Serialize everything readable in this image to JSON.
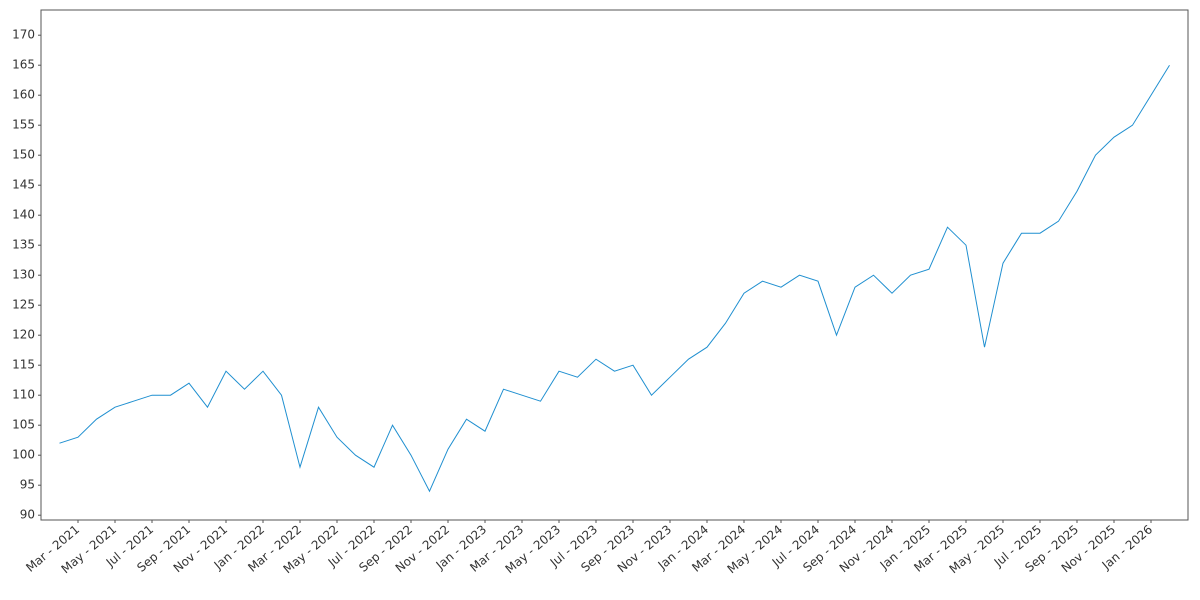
{
  "chart_data": {
    "type": "line",
    "x": [
      "2021-02",
      "2021-03",
      "2021-04",
      "2021-05",
      "2021-06",
      "2021-07",
      "2021-08",
      "2021-09",
      "2021-10",
      "2021-11",
      "2021-12",
      "2022-01",
      "2022-02",
      "2022-03",
      "2022-04",
      "2022-05",
      "2022-06",
      "2022-07",
      "2022-08",
      "2022-09",
      "2022-10",
      "2022-11",
      "2022-12",
      "2023-01",
      "2023-02",
      "2023-03",
      "2023-04",
      "2023-05",
      "2023-06",
      "2023-07",
      "2023-08",
      "2023-09",
      "2023-10",
      "2023-11",
      "2023-12",
      "2024-01",
      "2024-02",
      "2024-03",
      "2024-04",
      "2024-05",
      "2024-06",
      "2024-07",
      "2024-08",
      "2024-09",
      "2024-10",
      "2024-11",
      "2024-12",
      "2025-01",
      "2025-02",
      "2025-03",
      "2025-04",
      "2025-05",
      "2025-06",
      "2025-07",
      "2025-08",
      "2025-09",
      "2025-10",
      "2025-11",
      "2025-12",
      "2026-01",
      "2026-02"
    ],
    "series": [
      {
        "color": "#1f8fd0",
        "values": [
          102,
          103,
          106,
          108,
          109,
          110,
          110,
          112,
          108,
          114,
          111,
          114,
          110,
          98,
          108,
          103,
          100,
          98,
          105,
          100,
          94,
          101,
          106,
          104,
          111,
          110,
          109,
          114,
          113,
          116,
          114,
          115,
          110,
          113,
          116,
          118,
          122,
          127,
          129,
          128,
          130,
          129,
          120,
          128,
          130,
          127,
          130,
          131,
          138,
          135,
          118,
          132,
          137,
          137,
          139,
          144,
          150,
          153,
          155,
          160,
          165
        ]
      }
    ],
    "xlim": [
      "2021-01",
      "2026-03"
    ],
    "xticks": [
      {
        "value": "2021-03",
        "label": "Mar - 2021"
      },
      {
        "value": "2021-05",
        "label": "May - 2021"
      },
      {
        "value": "2021-07",
        "label": "Jul - 2021"
      },
      {
        "value": "2021-09",
        "label": "Sep - 2021"
      },
      {
        "value": "2021-11",
        "label": "Nov - 2021"
      },
      {
        "value": "2022-01",
        "label": "Jan - 2022"
      },
      {
        "value": "2022-03",
        "label": "Mar - 2022"
      },
      {
        "value": "2022-05",
        "label": "May - 2022"
      },
      {
        "value": "2022-07",
        "label": "Jul - 2022"
      },
      {
        "value": "2022-09",
        "label": "Sep - 2022"
      },
      {
        "value": "2022-11",
        "label": "Nov - 2022"
      },
      {
        "value": "2023-01",
        "label": "Jan - 2023"
      },
      {
        "value": "2023-03",
        "label": "Mar - 2023"
      },
      {
        "value": "2023-05",
        "label": "May - 2023"
      },
      {
        "value": "2023-07",
        "label": "Jul - 2023"
      },
      {
        "value": "2023-09",
        "label": "Sep - 2023"
      },
      {
        "value": "2023-11",
        "label": "Nov - 2023"
      },
      {
        "value": "2024-01",
        "label": "Jan - 2024"
      },
      {
        "value": "2024-03",
        "label": "Mar - 2024"
      },
      {
        "value": "2024-05",
        "label": "May - 2024"
      },
      {
        "value": "2024-07",
        "label": "Jul - 2024"
      },
      {
        "value": "2024-09",
        "label": "Sep - 2024"
      },
      {
        "value": "2024-11",
        "label": "Nov - 2024"
      },
      {
        "value": "2025-01",
        "label": "Jan - 2025"
      },
      {
        "value": "2025-03",
        "label": "Mar - 2025"
      },
      {
        "value": "2025-05",
        "label": "May - 2025"
      },
      {
        "value": "2025-07",
        "label": "Jul - 2025"
      },
      {
        "value": "2025-09",
        "label": "Sep - 2025"
      },
      {
        "value": "2025-11",
        "label": "Nov - 2025"
      },
      {
        "value": "2026-01",
        "label": "Jan - 2026"
      }
    ],
    "ylim": [
      89.2,
      174.2
    ],
    "yticks": [
      90,
      95,
      100,
      105,
      110,
      115,
      120,
      125,
      130,
      135,
      140,
      145,
      150,
      155,
      160,
      165,
      170
    ],
    "grid": false
  }
}
